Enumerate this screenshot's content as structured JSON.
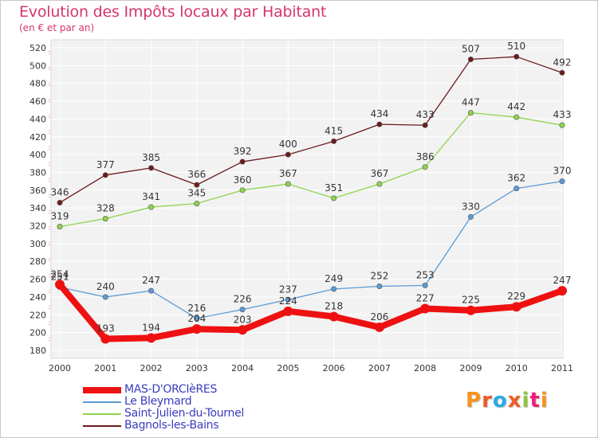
{
  "title": "Evolution des Impôts locaux par Habitant",
  "subtitle": "(en € et par an)",
  "logo": "Proxiti",
  "chart_data": {
    "type": "line",
    "title": "Evolution des Impôts locaux par Habitant",
    "subtitle": "(en € et par an)",
    "xlabel": "",
    "ylabel": "",
    "x": [
      "2000",
      "2001",
      "2002",
      "2003",
      "2004",
      "2005",
      "2006",
      "2007",
      "2008",
      "2009",
      "2010",
      "2011"
    ],
    "ylim": [
      180,
      520
    ],
    "yticks": [
      180,
      200,
      220,
      240,
      260,
      280,
      300,
      320,
      340,
      360,
      380,
      400,
      420,
      440,
      460,
      480,
      500,
      520
    ],
    "legend_position": "bottom-left",
    "series": [
      {
        "name": "MAS-D'ORCIèRES",
        "color": "#ee1111",
        "values": [
          254,
          193,
          194,
          204,
          203,
          224,
          218,
          206,
          227,
          225,
          229,
          247
        ]
      },
      {
        "name": "Le Bleymard",
        "color": "#5b9bd5",
        "values": [
          251,
          240,
          247,
          216,
          226,
          237,
          249,
          252,
          253,
          330,
          362,
          370
        ]
      },
      {
        "name": "Saint-Julien-du-Tournel",
        "color": "#8fd44c",
        "values": [
          319,
          328,
          341,
          345,
          360,
          367,
          351,
          367,
          386,
          447,
          442,
          433
        ]
      },
      {
        "name": "Bagnols-les-Bains",
        "color": "#6b1b1b",
        "values": [
          346,
          377,
          385,
          366,
          392,
          400,
          415,
          434,
          433,
          507,
          510,
          492
        ]
      }
    ]
  }
}
